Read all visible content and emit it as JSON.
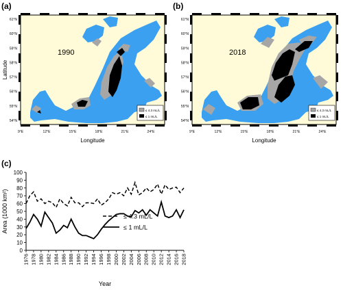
{
  "panels": {
    "a": {
      "label": "(a)",
      "year": "1990",
      "legend": [
        "≤ 4.3 mL/L",
        "≤ 1 mL/L"
      ]
    },
    "b": {
      "label": "(b)",
      "year": "2018",
      "legend": [
        "≤ 4.3 mL/L",
        "≤ 1 mL/L"
      ]
    },
    "c": {
      "label": "(c)"
    }
  },
  "map_axes": {
    "xlabel": "Longitude",
    "ylabel": "Latitude",
    "lon_ticks": [
      "9°E",
      "12°E",
      "15°E",
      "18°E",
      "21°E",
      "24°E"
    ],
    "lat_ticks": [
      "54°N",
      "55°N",
      "56°N",
      "57°N",
      "58°N",
      "59°N",
      "60°N",
      "61°N"
    ]
  },
  "colors": {
    "land": "#fffbd8",
    "sea": "#3aa0ef",
    "hypoxic": "#a6a6a6",
    "anoxic": "#000000",
    "frame": "#000000"
  },
  "chart_data": {
    "type": "line",
    "xlabel": "Year",
    "ylabel": "Area (1000 km²)",
    "ylim": [
      0,
      100
    ],
    "yticks": [
      0,
      10,
      20,
      30,
      40,
      50,
      60,
      70,
      80,
      90,
      100
    ],
    "xticks": [
      1976,
      1978,
      1980,
      1982,
      1984,
      1986,
      1988,
      1990,
      1992,
      1994,
      1996,
      1998,
      2000,
      2002,
      2004,
      2006,
      2008,
      2010,
      2012,
      2014,
      2016,
      2018
    ],
    "x": [
      1976,
      1977,
      1978,
      1979,
      1980,
      1981,
      1982,
      1983,
      1984,
      1985,
      1986,
      1987,
      1988,
      1989,
      1990,
      1991,
      1992,
      1993,
      1994,
      1995,
      1996,
      1997,
      1998,
      1999,
      2000,
      2001,
      2002,
      2003,
      2004,
      2005,
      2006,
      2007,
      2008,
      2009,
      2010,
      2011,
      2012,
      2013,
      2014,
      2015,
      2016,
      2017,
      2018
    ],
    "series": [
      {
        "name": "≤ 4.3 mL/L",
        "style": "dashed",
        "values": [
          60,
          70,
          75,
          63,
          66,
          60,
          63,
          61,
          55,
          66,
          60,
          57,
          68,
          61,
          61,
          56,
          61,
          61,
          60,
          66,
          58,
          61,
          66,
          74,
          72,
          74,
          70,
          80,
          72,
          87,
          71,
          74,
          80,
          75,
          78,
          85,
          72,
          84,
          78,
          80,
          81,
          74,
          80
        ]
      },
      {
        "name": "≤ 1 mL/L",
        "style": "solid",
        "values": [
          28,
          36,
          46,
          40,
          31,
          49,
          42,
          35,
          22,
          26,
          32,
          29,
          40,
          30,
          22,
          19,
          19,
          17,
          15,
          20,
          27,
          33,
          38,
          42,
          46,
          47,
          47,
          44,
          43,
          51,
          48,
          52,
          45,
          52,
          48,
          44,
          62,
          44,
          42,
          44,
          52,
          42,
          52
        ]
      }
    ],
    "legend_position": "lower-right"
  }
}
